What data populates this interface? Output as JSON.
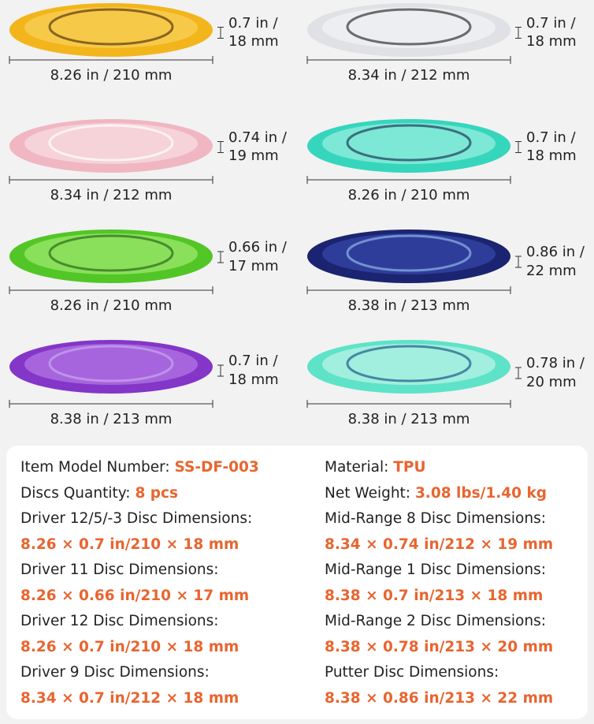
{
  "discs": [
    {
      "width": "8.26 in / 210 mm",
      "height": [
        "0.7 in /",
        "18 mm"
      ]
    },
    {
      "width": "8.34 in / 212 mm",
      "height": [
        "0.7 in /",
        "18 mm"
      ]
    },
    {
      "width": "8.34 in / 212 mm",
      "height": [
        "0.74 in /",
        "19 mm"
      ]
    },
    {
      "width": "8.26 in / 210 mm",
      "height": [
        "0.7 in /",
        "18 mm"
      ]
    },
    {
      "width": "8.26 in / 210 mm",
      "height": [
        "0.66 in /",
        "17 mm"
      ]
    },
    {
      "width": "8.38 in / 213 mm",
      "height": [
        "0.86 in /",
        "22 mm"
      ]
    },
    {
      "width": "8.38 in / 213 mm",
      "height": [
        "0.7 in /",
        "18 mm"
      ]
    },
    {
      "width": "8.38 in / 213 mm",
      "height": [
        "0.78 in /",
        "20 mm"
      ]
    }
  ],
  "specs": {
    "left": [
      {
        "label": "Item Model Number:",
        "value": "SS-DF-003"
      },
      {
        "label": "Discs Quantity:",
        "value": "8 pcs"
      },
      {
        "label": "Driver 12/5/-3 Disc Dimensions:",
        "value": "8.26 × 0.7 in/210 × 18 mm"
      },
      {
        "label": "Driver 11 Disc Dimensions:",
        "value": "8.26 × 0.66 in/210 × 17 mm"
      },
      {
        "label": "Driver 12 Disc Dimensions:",
        "value": "8.26 × 0.7 in/210 × 18 mm"
      },
      {
        "label": "Driver 9 Disc Dimensions:",
        "value": "8.34 × 0.7 in/212 × 18 mm"
      }
    ],
    "right": [
      {
        "label": "Material:",
        "value": "TPU"
      },
      {
        "label": "Net Weight:",
        "value": "3.08 lbs/1.40 kg"
      },
      {
        "label": "Mid-Range 8 Disc Dimensions:",
        "value": "8.34 × 0.74 in/212 × 19 mm"
      },
      {
        "label": "Mid-Range 1 Disc Dimensions:",
        "value": "8.38 × 0.7 in/213 × 18 mm"
      },
      {
        "label": "Mid-Range 2 Disc Dimensions:",
        "value": "8.38 × 0.78 in/213 × 20 mm"
      },
      {
        "label": "Putter Disc Dimensions:",
        "value": "8.38 × 0.86 in/213 × 22 mm"
      }
    ]
  }
}
